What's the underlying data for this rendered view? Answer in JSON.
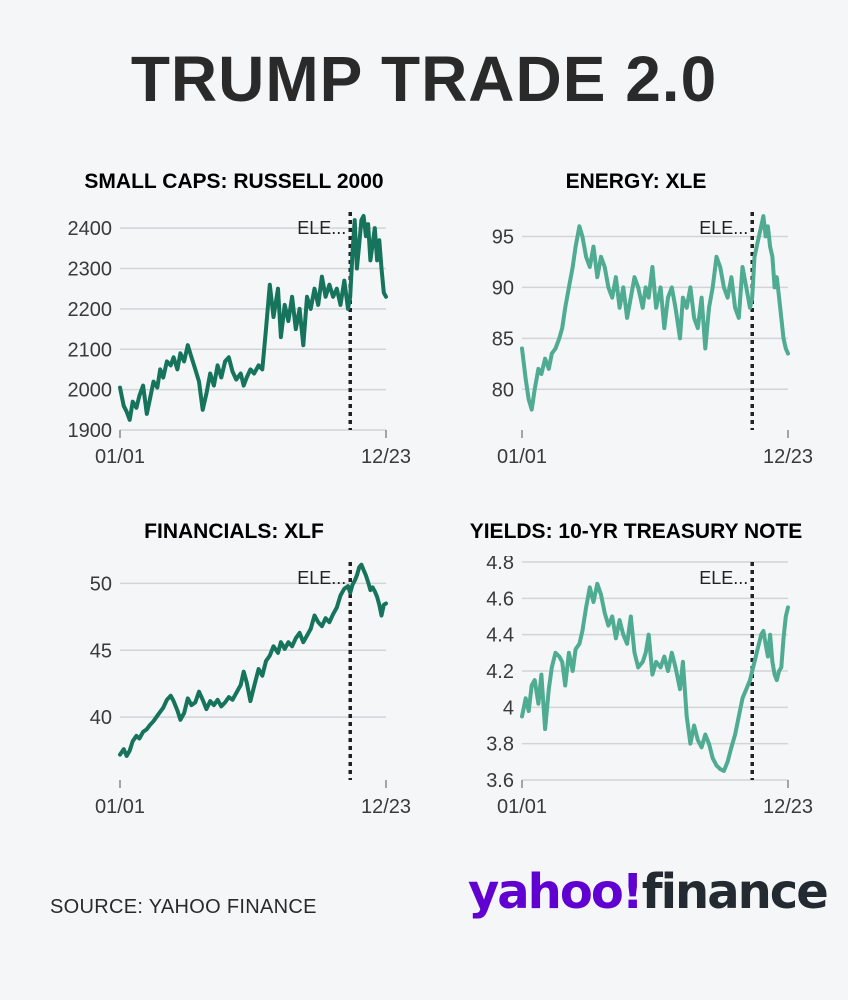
{
  "title": "TRUMP TRADE 2.0",
  "source": "SOURCE: YAHOO FINANCE",
  "logo": {
    "part1": "yahoo!",
    "part2": "finance",
    "brand_color": "#6001d2"
  },
  "colors": {
    "dark_green": "#16745c",
    "light_green": "#4fab91",
    "grid": "#d2d4d6",
    "marker": "#222222"
  },
  "chart_data": [
    {
      "type": "line",
      "title": "SMALL CAPS: RUSSELL 2000",
      "color": "#16745c",
      "ylim": [
        1900,
        2440
      ],
      "yticks": [
        1900,
        2000,
        2100,
        2200,
        2300,
        2400
      ],
      "ytick_labels": [
        "1900",
        "2000",
        "2100",
        "2200",
        "2300",
        "2400"
      ],
      "xlim": [
        0,
        357
      ],
      "xticks": [
        0,
        357
      ],
      "xtick_labels": [
        "01/01",
        "12/23"
      ],
      "marker": {
        "x": 309,
        "label": "ELE..."
      },
      "series": [
        {
          "x": [
            0,
            5,
            9,
            13,
            17,
            22,
            26,
            31,
            36,
            40,
            45,
            50,
            54,
            58,
            63,
            68,
            72,
            77,
            81,
            86,
            91,
            96,
            101,
            106,
            111,
            116,
            121,
            126,
            131,
            136,
            141,
            146,
            151,
            156,
            162,
            166,
            170,
            175,
            180,
            186,
            191,
            196,
            201,
            206,
            212,
            216,
            221,
            226,
            231,
            236,
            241,
            246,
            251,
            256,
            261,
            266,
            271,
            276,
            281,
            286,
            291,
            296,
            301,
            306,
            309,
            312,
            315,
            318,
            321,
            324,
            327,
            330,
            333,
            336,
            339,
            342,
            345,
            348,
            351,
            354,
            357
          ],
          "y": [
            2005,
            1960,
            1945,
            1925,
            1970,
            1955,
            1985,
            2010,
            1940,
            1975,
            2020,
            2005,
            2050,
            2030,
            2070,
            2060,
            2080,
            2050,
            2090,
            2070,
            2110,
            2080,
            2050,
            2020,
            1950,
            1990,
            2040,
            2010,
            2060,
            2030,
            2070,
            2080,
            2045,
            2025,
            2040,
            2010,
            2030,
            2050,
            2040,
            2060,
            2050,
            2150,
            2260,
            2180,
            2250,
            2130,
            2210,
            2170,
            2230,
            2150,
            2200,
            2110,
            2230,
            2200,
            2250,
            2210,
            2280,
            2230,
            2260,
            2230,
            2250,
            2210,
            2270,
            2200,
            2230,
            2340,
            2420,
            2300,
            2360,
            2420,
            2430,
            2380,
            2410,
            2320,
            2360,
            2400,
            2320,
            2370,
            2300,
            2240,
            2230
          ]
        }
      ]
    },
    {
      "type": "line",
      "title": "ENERGY: XLE",
      "color": "#4fab91",
      "ylim": [
        76,
        97.4
      ],
      "yticks": [
        80,
        85,
        90,
        95
      ],
      "ytick_labels": [
        "80",
        "85",
        "90",
        "95"
      ],
      "xlim": [
        0,
        357
      ],
      "xticks": [
        0,
        357
      ],
      "xtick_labels": [
        "01/01",
        "12/23"
      ],
      "marker": {
        "x": 309,
        "label": "ELE..."
      },
      "series": [
        {
          "x": [
            0,
            5,
            9,
            13,
            17,
            22,
            26,
            31,
            36,
            40,
            45,
            50,
            54,
            58,
            63,
            68,
            72,
            77,
            81,
            86,
            91,
            96,
            101,
            106,
            111,
            116,
            121,
            126,
            131,
            136,
            141,
            146,
            151,
            156,
            162,
            166,
            170,
            175,
            180,
            186,
            191,
            196,
            201,
            206,
            212,
            216,
            221,
            226,
            231,
            236,
            241,
            246,
            251,
            256,
            261,
            266,
            271,
            276,
            281,
            286,
            291,
            296,
            301,
            306,
            309,
            312,
            315,
            318,
            321,
            324,
            327,
            330,
            333,
            336,
            339,
            342,
            345,
            348,
            351,
            354,
            357
          ],
          "y": [
            84,
            81,
            79,
            78,
            80,
            82,
            81.5,
            83,
            82,
            83.5,
            84,
            85,
            86,
            88,
            90,
            92,
            94,
            96,
            95,
            93,
            92,
            94,
            91,
            93,
            92,
            90,
            89,
            91,
            88,
            90,
            87,
            89,
            91,
            90,
            88,
            90,
            89,
            92,
            88,
            90,
            86,
            89,
            90,
            88,
            85,
            89,
            88,
            90,
            87,
            86,
            89,
            84,
            88,
            90,
            93,
            92,
            90,
            89,
            91,
            88,
            87,
            92,
            90,
            88,
            89,
            93,
            94,
            95,
            96,
            97,
            95,
            96,
            94,
            93,
            90,
            91,
            89,
            87,
            85,
            84,
            83.5
          ]
        }
      ]
    },
    {
      "type": "line",
      "title": "FINANCIALS: XLF",
      "color": "#16745c",
      "ylim": [
        35.3,
        51.6
      ],
      "yticks": [
        40,
        45,
        50
      ],
      "ytick_labels": [
        "40",
        "45",
        "50"
      ],
      "xlim": [
        0,
        357
      ],
      "xticks": [
        0,
        357
      ],
      "xtick_labels": [
        "01/01",
        "12/23"
      ],
      "marker": {
        "x": 309,
        "label": "ELE..."
      },
      "series": [
        {
          "x": [
            0,
            5,
            9,
            13,
            17,
            22,
            26,
            31,
            36,
            40,
            45,
            50,
            54,
            58,
            63,
            68,
            72,
            77,
            81,
            86,
            91,
            96,
            101,
            106,
            111,
            116,
            121,
            126,
            131,
            136,
            141,
            146,
            151,
            156,
            162,
            166,
            170,
            175,
            180,
            186,
            191,
            196,
            201,
            206,
            212,
            216,
            221,
            226,
            231,
            236,
            241,
            246,
            251,
            256,
            261,
            266,
            271,
            276,
            281,
            286,
            291,
            296,
            301,
            306,
            309,
            312,
            315,
            318,
            321,
            324,
            327,
            330,
            333,
            336,
            339,
            342,
            345,
            348,
            351,
            354,
            357
          ],
          "y": [
            37.2,
            37.6,
            37.1,
            37.5,
            38.2,
            38.6,
            38.4,
            38.9,
            39.1,
            39.4,
            39.7,
            40.1,
            40.4,
            40.7,
            41.3,
            41.6,
            41.2,
            40.5,
            39.8,
            40.3,
            41.4,
            40.9,
            41.1,
            41.9,
            41.3,
            40.6,
            41.2,
            40.9,
            41.3,
            40.8,
            41.1,
            41.5,
            41.3,
            41.8,
            42.4,
            43.4,
            42.6,
            41.2,
            42.3,
            43.6,
            43.1,
            44.2,
            44.6,
            45.3,
            44.8,
            45.6,
            45.1,
            45.6,
            45.3,
            45.9,
            46.3,
            45.6,
            46.1,
            46.6,
            47.6,
            47.1,
            46.8,
            47.4,
            47.1,
            47.7,
            48.2,
            49.1,
            49.6,
            49.8,
            49.3,
            49.9,
            50.2,
            50.6,
            51.2,
            51.4,
            51.0,
            50.6,
            50.1,
            49.5,
            49.7,
            49.4,
            49.0,
            48.4,
            47.6,
            48.4,
            48.5
          ]
        }
      ]
    },
    {
      "type": "line",
      "title": "YIELDS: 10-YR TREASURY NOTE",
      "color": "#4fab91",
      "ylim": [
        3.6,
        4.8
      ],
      "yticks": [
        3.6,
        3.8,
        4.0,
        4.2,
        4.4,
        4.6,
        4.8
      ],
      "ytick_labels": [
        "3.6",
        "3.8",
        "4",
        "4.2",
        "4.4",
        "4.6",
        "4.8"
      ],
      "xlim": [
        0,
        357
      ],
      "xticks": [
        0,
        357
      ],
      "xtick_labels": [
        "01/01",
        "12/23"
      ],
      "marker": {
        "x": 309,
        "label": "ELE..."
      },
      "series": [
        {
          "x": [
            0,
            5,
            9,
            13,
            17,
            22,
            26,
            31,
            36,
            40,
            45,
            50,
            54,
            58,
            63,
            68,
            72,
            77,
            81,
            86,
            91,
            96,
            101,
            106,
            111,
            116,
            121,
            126,
            131,
            136,
            141,
            146,
            151,
            156,
            162,
            166,
            170,
            175,
            180,
            186,
            191,
            196,
            201,
            206,
            212,
            216,
            221,
            226,
            231,
            236,
            241,
            246,
            251,
            256,
            261,
            266,
            271,
            276,
            281,
            286,
            291,
            296,
            301,
            306,
            309,
            312,
            315,
            318,
            321,
            324,
            327,
            330,
            333,
            336,
            339,
            342,
            345,
            348,
            351,
            354,
            357
          ],
          "y": [
            3.95,
            4.05,
            3.98,
            4.12,
            4.15,
            4.02,
            4.18,
            3.88,
            4.1,
            4.22,
            4.3,
            4.28,
            4.25,
            4.12,
            4.3,
            4.2,
            4.32,
            4.35,
            4.42,
            4.55,
            4.66,
            4.58,
            4.68,
            4.62,
            4.52,
            4.45,
            4.5,
            4.38,
            4.48,
            4.4,
            4.35,
            4.5,
            4.3,
            4.22,
            4.25,
            4.3,
            4.4,
            4.18,
            4.25,
            4.22,
            4.28,
            4.2,
            4.3,
            4.22,
            4.1,
            4.25,
            3.95,
            3.8,
            3.9,
            3.82,
            3.78,
            3.85,
            3.8,
            3.72,
            3.68,
            3.66,
            3.65,
            3.7,
            3.78,
            3.85,
            3.95,
            4.05,
            4.1,
            4.15,
            4.2,
            4.25,
            4.3,
            4.35,
            4.4,
            4.42,
            4.35,
            4.28,
            4.4,
            4.25,
            4.18,
            4.15,
            4.2,
            4.22,
            4.38,
            4.5,
            4.55
          ]
        }
      ]
    }
  ]
}
